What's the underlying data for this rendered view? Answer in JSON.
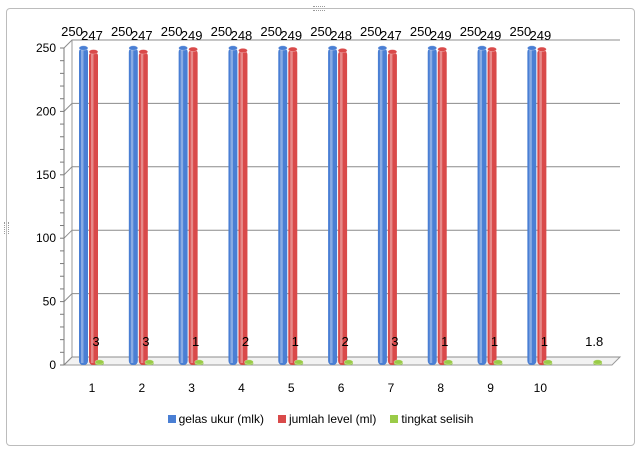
{
  "chart_data": {
    "type": "bar",
    "categories": [
      "1",
      "2",
      "3",
      "4",
      "5",
      "6",
      "7",
      "8",
      "9",
      "10",
      ""
    ],
    "series": [
      {
        "name": "gelas ukur (mlk)",
        "values": [
          250,
          250,
          250,
          250,
          250,
          250,
          250,
          250,
          250,
          250,
          null
        ],
        "labels": [
          "250",
          "250",
          "250",
          "250",
          "250",
          "250",
          "250",
          "250",
          "250",
          "250",
          ""
        ]
      },
      {
        "name": "jumlah level (ml)",
        "values": [
          247,
          247,
          249,
          248,
          249,
          248,
          247,
          249,
          249,
          249,
          null
        ],
        "labels": [
          "247",
          "247",
          "249",
          "248",
          "249",
          "248",
          "247",
          "249",
          "249",
          "249",
          ""
        ]
      },
      {
        "name": "tingkat selisih",
        "values": [
          3,
          3,
          1,
          2,
          1,
          2,
          3,
          1,
          1,
          1,
          1.8
        ],
        "labels": [
          "3",
          "3",
          "1",
          "2",
          "1",
          "2",
          "3",
          "1",
          "1",
          "1",
          "1.8"
        ]
      }
    ],
    "colors": [
      "#4a7fd4",
      "#d94a4a",
      "#9acb48"
    ],
    "ylim": [
      0,
      250
    ],
    "yticks": [
      "0",
      "50",
      "100",
      "150",
      "200",
      "250"
    ],
    "grid": true,
    "legend": "bottom",
    "style": "3d-cylinder"
  }
}
